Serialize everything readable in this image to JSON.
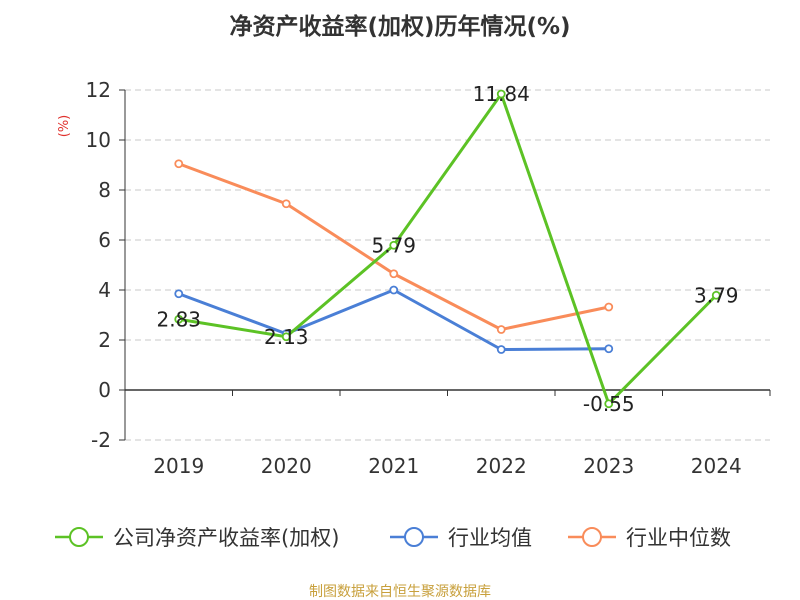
{
  "chart_data": {
    "type": "line",
    "title": "净资产收益率(加权)历年情况(%)",
    "ylabel": "(%)",
    "categories": [
      "2019",
      "2020",
      "2021",
      "2022",
      "2023",
      "2024"
    ],
    "ylim": [
      -2,
      12
    ],
    "yticks": [
      -2,
      0,
      2,
      4,
      6,
      8,
      10,
      12
    ],
    "grid": true,
    "legend_position": "bottom",
    "series": [
      {
        "name": "公司净资产收益率(加权)",
        "color": "#5cc225",
        "values": [
          2.83,
          2.13,
          5.79,
          11.84,
          -0.55,
          3.79
        ],
        "labels": [
          "2.83",
          "2.13",
          "5.79",
          "11.84",
          "-0.55",
          "3.79"
        ]
      },
      {
        "name": "行业均值",
        "color": "#4a7fd6",
        "values": [
          3.85,
          2.25,
          4.0,
          1.62,
          1.65,
          null
        ]
      },
      {
        "name": "行业中位数",
        "color": "#f98c5a",
        "values": [
          9.05,
          7.45,
          4.65,
          2.42,
          3.32,
          null
        ]
      }
    ],
    "source": "制图数据来自恒生聚源数据库"
  }
}
